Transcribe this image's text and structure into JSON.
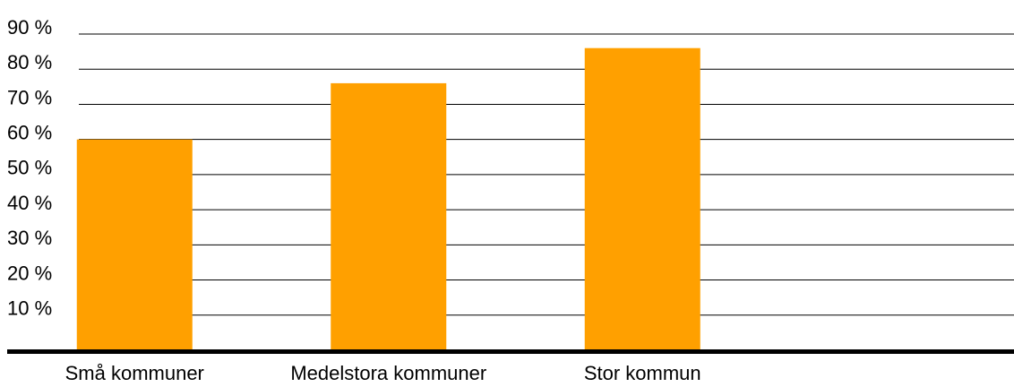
{
  "chart_data": {
    "type": "bar",
    "categories": [
      "Små kommuner",
      "Medelstora kommuner",
      "Stor kommun"
    ],
    "values": [
      60,
      76,
      86
    ],
    "color": "#ffa000",
    "ylim": [
      0,
      90
    ],
    "yticks": [
      {
        "value": 10,
        "label": "10 %"
      },
      {
        "value": 20,
        "label": "20 %"
      },
      {
        "value": 30,
        "label": "30 %"
      },
      {
        "value": 40,
        "label": "40 %"
      },
      {
        "value": 50,
        "label": "50 %"
      },
      {
        "value": 60,
        "label": "60 %"
      },
      {
        "value": 70,
        "label": "70 %"
      },
      {
        "value": 80,
        "label": "80 %"
      },
      {
        "value": 90,
        "label": "90 %"
      }
    ],
    "grid": true
  }
}
